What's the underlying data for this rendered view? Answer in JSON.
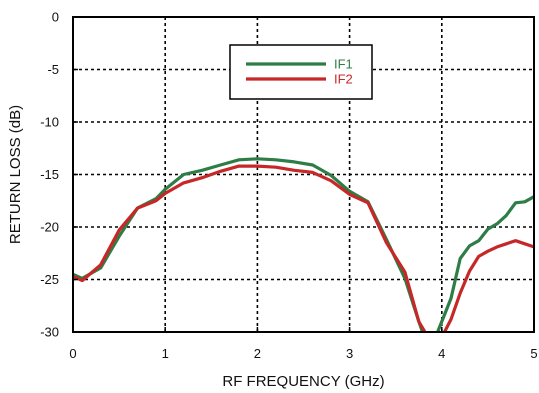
{
  "chart_data": {
    "type": "line",
    "title": "",
    "xlabel": "RF FREQUENCY (GHz)",
    "ylabel": "RETURN LOSS (dB)",
    "xlim": [
      0,
      5
    ],
    "ylim": [
      -30,
      0
    ],
    "xticks": [
      0,
      1,
      2,
      3,
      4,
      5
    ],
    "xtick_labels": [
      "0",
      "1",
      "2",
      "3",
      "4",
      "5"
    ],
    "yticks": [
      0,
      -5,
      -10,
      -15,
      -20,
      -25,
      -30
    ],
    "ytick_labels": [
      "0",
      "-5",
      "-10",
      "-15",
      "-20",
      "-25",
      "-30"
    ],
    "grid": true,
    "legend": "top-center",
    "series": [
      {
        "name": "IF1",
        "color": "#2e7d46",
        "x": [
          0,
          0.1,
          0.3,
          0.5,
          0.7,
          0.9,
          1.0,
          1.2,
          1.4,
          1.6,
          1.8,
          2.0,
          2.2,
          2.4,
          2.6,
          2.8,
          3.0,
          3.2,
          3.4,
          3.6,
          3.75,
          3.85,
          3.9,
          4.0,
          4.1,
          4.2,
          4.3,
          4.4,
          4.5,
          4.6,
          4.7,
          4.8,
          4.9,
          5.0
        ],
        "y": [
          -24.5,
          -24.9,
          -23.9,
          -20.9,
          -18.2,
          -17.3,
          -16.4,
          -15.0,
          -14.6,
          -14.1,
          -13.6,
          -13.5,
          -13.6,
          -13.8,
          -14.1,
          -15.1,
          -16.6,
          -17.6,
          -21.2,
          -24.9,
          -29.0,
          -31.5,
          -31.2,
          -29.0,
          -26.8,
          -23.0,
          -21.8,
          -21.3,
          -20.2,
          -19.7,
          -18.9,
          -17.7,
          -17.6,
          -17.1
        ]
      },
      {
        "name": "IF2",
        "color": "#c62828",
        "x": [
          0,
          0.1,
          0.3,
          0.5,
          0.7,
          0.9,
          1.0,
          1.2,
          1.4,
          1.6,
          1.8,
          2.0,
          2.2,
          2.4,
          2.6,
          2.8,
          3.0,
          3.2,
          3.4,
          3.6,
          3.75,
          3.85,
          3.9,
          4.0,
          4.1,
          4.2,
          4.3,
          4.4,
          4.5,
          4.6,
          4.7,
          4.8,
          4.9,
          5.0
        ],
        "y": [
          -24.7,
          -25.1,
          -23.6,
          -20.3,
          -18.2,
          -17.5,
          -16.8,
          -15.8,
          -15.3,
          -14.7,
          -14.2,
          -14.2,
          -14.3,
          -14.6,
          -14.8,
          -15.6,
          -16.9,
          -17.7,
          -21.5,
          -24.3,
          -29.0,
          -30.5,
          -31.0,
          -30.5,
          -28.8,
          -26.3,
          -24.2,
          -22.8,
          -22.3,
          -21.9,
          -21.6,
          -21.3,
          -21.6,
          -21.9
        ]
      }
    ]
  }
}
